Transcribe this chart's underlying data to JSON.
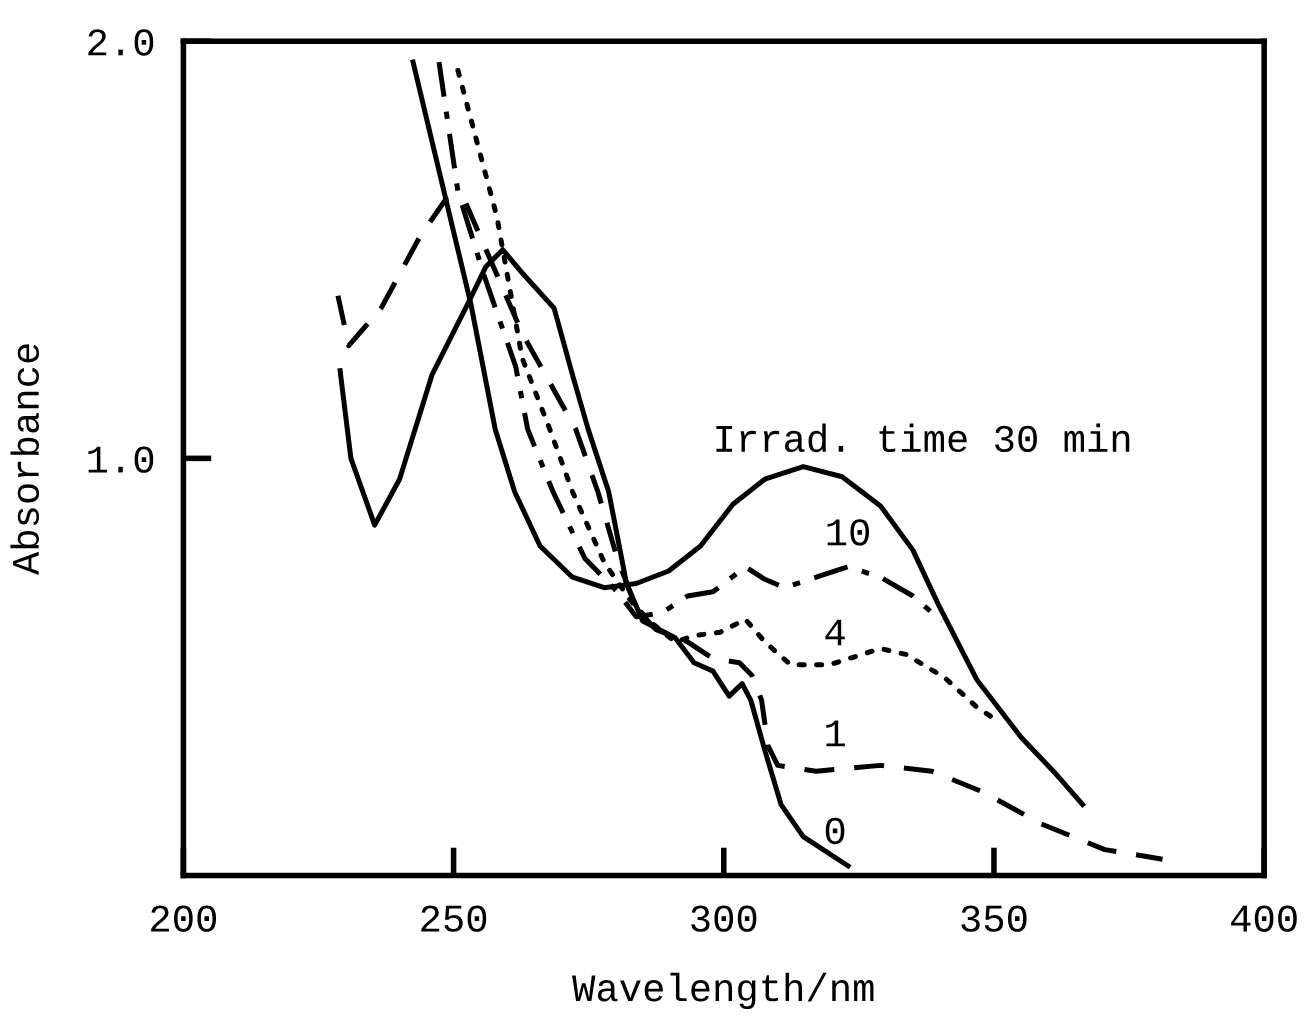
{
  "chart_data": {
    "type": "line",
    "xlabel": "Wavelength/nm",
    "ylabel": "Absorbance",
    "xlim": [
      200,
      400
    ],
    "ylim": [
      0,
      2.0
    ],
    "xticks": [
      200,
      250,
      300,
      350,
      400
    ],
    "yticks": [
      {
        "value": 1.0,
        "label": "1.0"
      },
      {
        "value": 2.0,
        "label": "2.0"
      }
    ],
    "grid": false,
    "legend": false,
    "marker": "none",
    "series": [
      {
        "color": "#000000",
        "line_style": "solid",
        "x": [
          229,
          231,
          235.4,
          240,
          246,
          252.6,
          256,
          259.1,
          263,
          268.6,
          272,
          274.9,
          278.7,
          282,
          285,
          291,
          294.5,
          298,
          301,
          303.4,
          305,
          307.6,
          310.6,
          314.7,
          323
        ],
        "values": [
          1.21,
          1.0,
          0.84,
          0.95,
          1.2,
          1.37,
          1.46,
          1.5,
          1.44,
          1.36,
          1.2,
          1.07,
          0.92,
          0.7,
          0.61,
          0.57,
          0.51,
          0.49,
          0.43,
          0.46,
          0.42,
          0.3,
          0.17,
          0.093,
          0.023
        ]
      },
      {
        "color": "#000000",
        "line_style": "dashed",
        "x": [
          228.6,
          230.6,
          236.6,
          243.7,
          248.5,
          252,
          262.7,
          272.6,
          276.7,
          280.3,
          283.8,
          287.4,
          293.3,
          298,
          302.9,
          305.2,
          307,
          308.2,
          310,
          317.1,
          329,
          338.5,
          348,
          358.7,
          370.5,
          381.2
        ],
        "values": [
          1.39,
          1.27,
          1.36,
          1.53,
          1.62,
          1.62,
          1.3,
          1.07,
          0.92,
          0.76,
          0.64,
          0.59,
          0.56,
          0.52,
          0.51,
          0.48,
          0.42,
          0.31,
          0.264,
          0.25,
          0.264,
          0.25,
          0.2,
          0.124,
          0.062,
          0.039
        ]
      },
      {
        "color": "#000000",
        "line_style": "dotted",
        "x": [
          250.8,
          258,
          262.7,
          267.8,
          272,
          277.9,
          282.7,
          286.2,
          291,
          294.5,
          299.3,
          304,
          307.6,
          312.4,
          319.5,
          329,
          333.7,
          340.9,
          346.8,
          350.4
        ],
        "values": [
          1.93,
          1.58,
          1.24,
          1.07,
          0.92,
          0.75,
          0.66,
          0.61,
          0.56,
          0.575,
          0.583,
          0.614,
          0.56,
          0.505,
          0.505,
          0.544,
          0.53,
          0.474,
          0.404,
          0.373
        ]
      },
      {
        "color": "#000000",
        "line_style": "dashdot",
        "x": [
          247.3,
          250.8,
          255.6,
          261.5,
          263.7,
          268.4,
          274.3,
          280.3,
          283.8,
          288.6,
          293.3,
          298,
          304,
          307.6,
          311.2,
          317.1,
          323,
          329,
          335,
          340.3
        ],
        "values": [
          1.95,
          1.64,
          1.44,
          1.22,
          1.07,
          0.92,
          0.76,
          0.68,
          0.62,
          0.63,
          0.67,
          0.68,
          0.74,
          0.71,
          0.69,
          0.715,
          0.74,
          0.715,
          0.67,
          0.61
        ]
      },
      {
        "color": "#000000",
        "line_style": "solid",
        "x": [
          242.5,
          253.2,
          257.7,
          261.3,
          266,
          272,
          277.9,
          283.8,
          289.8,
          295.7,
          301.7,
          307.6,
          314.7,
          321.9,
          329,
          335,
          339.7,
          346.8,
          355.1,
          361,
          366.4
        ],
        "values": [
          1.95,
          1.37,
          1.07,
          0.92,
          0.79,
          0.715,
          0.69,
          0.7,
          0.73,
          0.79,
          0.89,
          0.95,
          0.98,
          0.956,
          0.886,
          0.78,
          0.65,
          0.47,
          0.33,
          0.25,
          0.17
        ]
      }
    ],
    "annotations": [
      "Irrad. time 30 min",
      "10",
      "4",
      "1",
      "0"
    ]
  }
}
